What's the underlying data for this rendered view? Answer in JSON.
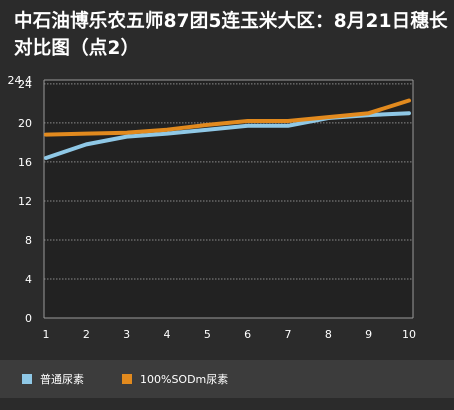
{
  "chart_data": {
    "type": "line",
    "title": "中石油博乐农五师87团5连玉米大区：8月21日穗长对比图（点2）",
    "categories": [
      "1",
      "2",
      "3",
      "4",
      "5",
      "6",
      "7",
      "8",
      "9",
      "10"
    ],
    "y_ticks": [
      "0",
      "4",
      "8",
      "12",
      "16",
      "20",
      "24",
      "24.4"
    ],
    "ylim": [
      0,
      24.4
    ],
    "grid": true,
    "legend_position": "bottom",
    "series": [
      {
        "name": "普通尿素",
        "color": "#8fc8e6",
        "values": [
          16.4,
          17.8,
          18.6,
          18.9,
          19.3,
          19.7,
          19.7,
          20.5,
          20.8,
          21.0
        ]
      },
      {
        "name": "100%SODm尿素",
        "color": "#e28a1e",
        "values": [
          18.8,
          18.9,
          19.0,
          19.3,
          19.8,
          20.2,
          20.2,
          20.6,
          21.0,
          22.3
        ]
      }
    ]
  }
}
